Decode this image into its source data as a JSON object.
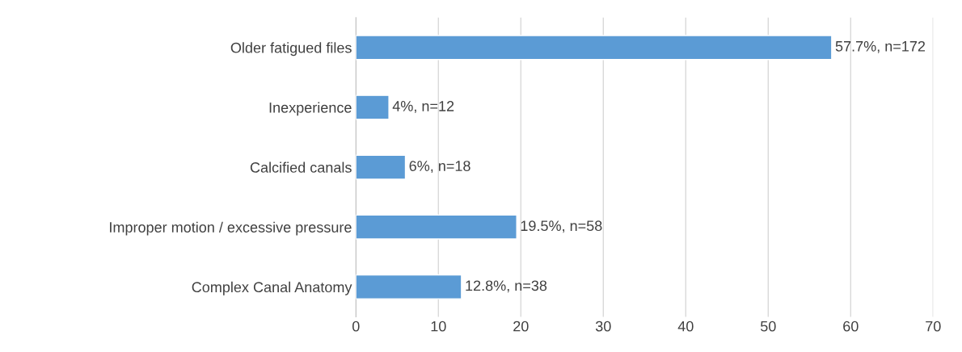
{
  "chart_data": {
    "type": "bar",
    "orientation": "horizontal",
    "categories": [
      "Older fatigued files",
      "Inexperience",
      "Calcified canals",
      "Improper motion / excessive pressure",
      "Complex Canal Anatomy"
    ],
    "values": [
      57.7,
      4,
      6,
      19.5,
      12.8
    ],
    "value_labels": [
      "57.7%, n=172",
      "4%, n=12",
      "6%, n=18",
      "19.5%, n=58",
      "12.8%, n=38"
    ],
    "color": "#5b9bd5",
    "xlim": [
      0,
      70
    ],
    "xticks": [
      0,
      10,
      20,
      30,
      40,
      50,
      60,
      70
    ],
    "grid": "x",
    "legend": false
  }
}
